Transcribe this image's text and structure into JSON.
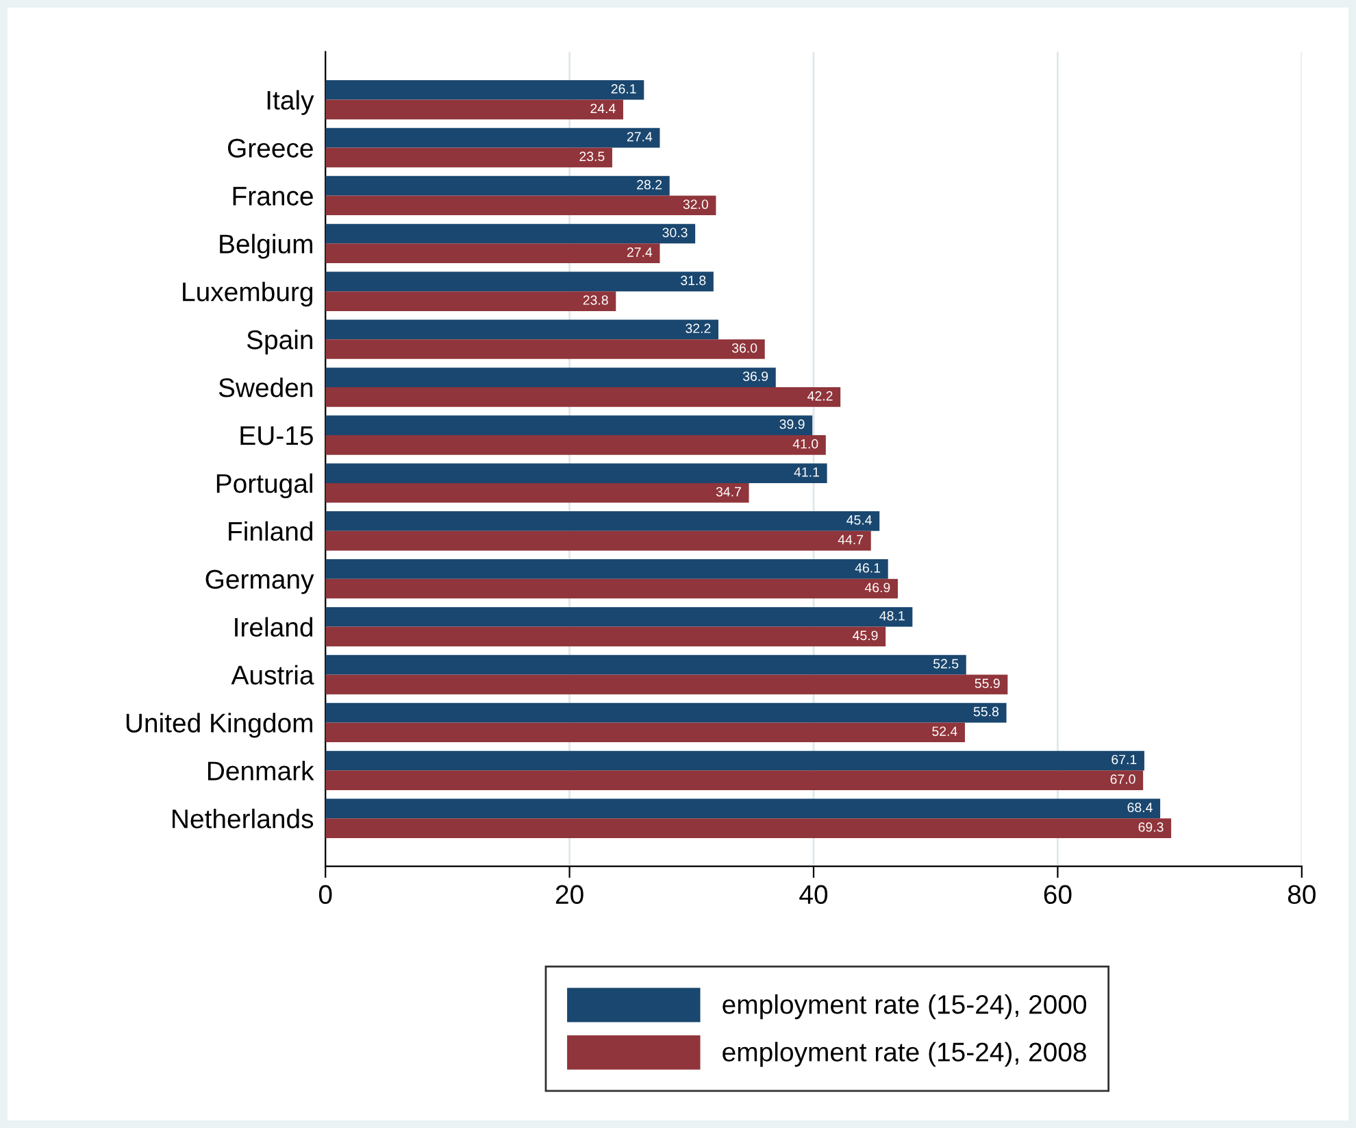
{
  "chart_data": {
    "type": "bar",
    "orientation": "horizontal",
    "categories": [
      "Italy",
      "Greece",
      "France",
      "Belgium",
      "Luxemburg",
      "Spain",
      "Sweden",
      "EU-15",
      "Portugal",
      "Finland",
      "Germany",
      "Ireland",
      "Austria",
      "United Kingdom",
      "Denmark",
      "Netherlands"
    ],
    "series": [
      {
        "name": "employment rate (15-24), 2000",
        "color": "#1a476f",
        "values": [
          26.1,
          27.4,
          28.2,
          30.3,
          31.8,
          32.2,
          36.9,
          39.9,
          41.1,
          45.4,
          46.1,
          48.1,
          52.5,
          55.8,
          67.1,
          68.4
        ],
        "value_labels": [
          "26.1",
          "27.4",
          "28.2",
          "30.3",
          "31.8",
          "32.2",
          "36.9",
          "39.9",
          "41.1",
          "45.4",
          "46.1",
          "48.1",
          "52.5",
          "55.8",
          "67.1",
          "68.4"
        ]
      },
      {
        "name": "employment rate (15-24), 2008",
        "color": "#90353b",
        "values": [
          24.4,
          23.5,
          32,
          27.4,
          23.8,
          36,
          42.2,
          41,
          34.7,
          44.7,
          46.9,
          45.9,
          55.9,
          52.4,
          67,
          69.3
        ],
        "value_labels": [
          "24.4",
          "23.5",
          "32.0",
          "27.4",
          "23.8",
          "36.0",
          "42.2",
          "41.0",
          "34.7",
          "44.7",
          "46.9",
          "45.9",
          "55.9",
          "52.4",
          "67.0",
          "69.3"
        ]
      }
    ],
    "xlim": [
      0,
      80
    ],
    "xticks": [
      0,
      20,
      40,
      60,
      80
    ],
    "grid": "x",
    "legend": "bottom"
  }
}
